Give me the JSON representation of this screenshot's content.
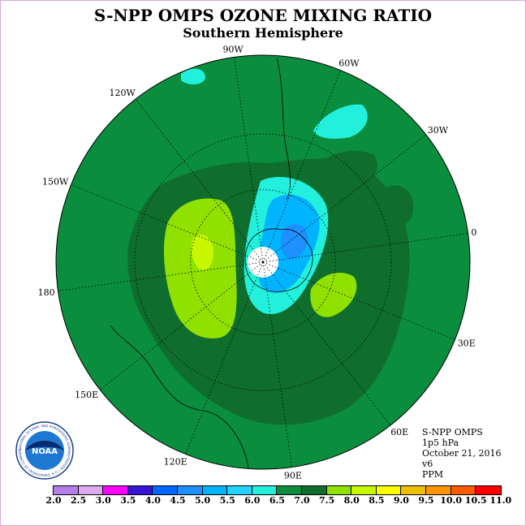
{
  "title": "S-NPP OMPS OZONE MIXING RATIO",
  "subtitle": "Southern Hemisphere",
  "longitude_labels": [
    "90W",
    "60W",
    "30W",
    "0",
    "30E",
    "60E",
    "90E",
    "120E",
    "150E",
    "180",
    "150W",
    "120W"
  ],
  "info": {
    "instrument": "S-NPP OMPS",
    "level": "1p5 hPa",
    "date": "October 21, 2016",
    "version": "v6",
    "units": "PPM"
  },
  "logo": {
    "text": "NOAA",
    "ring_text": "NATIONAL OCEANIC AND ATMOSPHERIC ADMINISTRATION • U.S. DEPARTMENT OF COMMERCE"
  },
  "colorbar": {
    "labels": [
      "2.0",
      "2.5",
      "3.0",
      "3.5",
      "4.0",
      "4.5",
      "5.0",
      "5.5",
      "6.0",
      "6.5",
      "7.0",
      "7.5",
      "8.0",
      "8.5",
      "9.0",
      "9.5",
      "10.0",
      "10.5",
      "11.0"
    ],
    "colors": [
      "#b57ee8",
      "#dcaaf0",
      "#ff00ff",
      "#3a14d6",
      "#0066ff",
      "#1e90ff",
      "#00b4ff",
      "#22d2ff",
      "#22f0dc",
      "#0a8e3e",
      "#0f6e2d",
      "#90e000",
      "#c8f800",
      "#ffff00",
      "#f0c000",
      "#ff9600",
      "#ff5a00",
      "#ff0000",
      "#8b4a2b"
    ]
  },
  "map_colors": {
    "base_6_0": "#0a8e3e",
    "mid_6_5": "#0f6e2d",
    "band_7_0": "#0f6e2d",
    "high_7_5": "#90e000",
    "high_8_0": "#c8f800",
    "low_5_5": "#22f0dc",
    "low_5_0": "#00b4ff",
    "low_4_5": "#1e90ff",
    "pole_hole": "#ffffff"
  }
}
